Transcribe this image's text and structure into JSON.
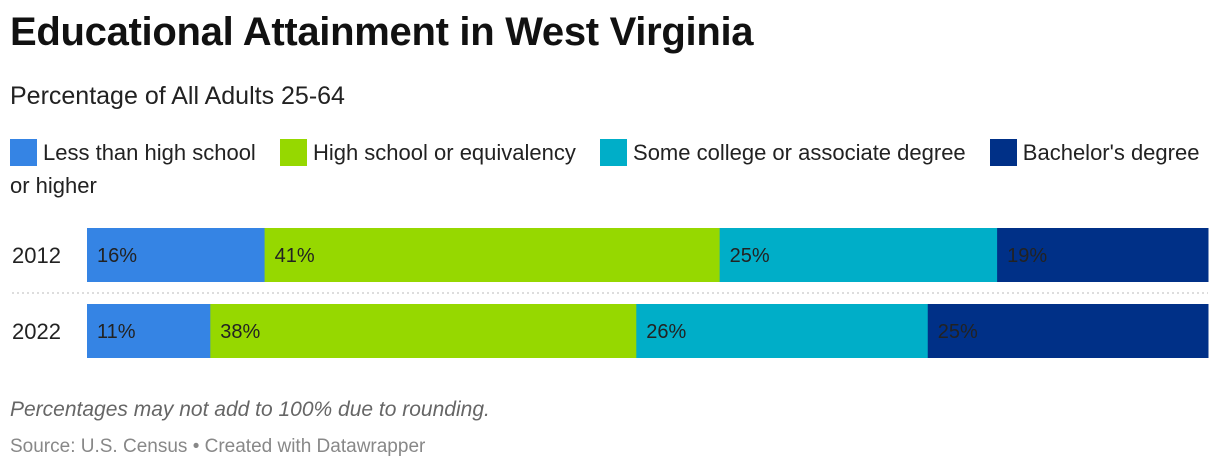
{
  "header": {
    "title": "Educational Attainment in West Virginia",
    "subtitle": "Percentage of All Adults 25-64"
  },
  "colors": {
    "less_than_hs": "#3584e4",
    "high_school": "#96d800",
    "some_college": "#00aec8",
    "bachelors": "#003087"
  },
  "chart_data": {
    "type": "bar",
    "orientation": "horizontal",
    "stacked": true,
    "categories": [
      "2012",
      "2022"
    ],
    "series": [
      {
        "name": "Less than high school",
        "values": [
          16,
          11
        ],
        "labels": [
          "16%",
          "11%"
        ],
        "color": "#3584e4",
        "label_color": "#ffffff"
      },
      {
        "name": "High school or equivalency",
        "values": [
          41,
          38
        ],
        "labels": [
          "41%",
          "38%"
        ],
        "color": "#96d800",
        "label_color": "#333333"
      },
      {
        "name": "Some college or associate degree",
        "values": [
          25,
          26
        ],
        "labels": [
          "25%",
          "26%"
        ],
        "color": "#00aec8",
        "label_color": "#ffffff"
      },
      {
        "name": "Bachelor's degree or higher",
        "values": [
          19,
          25
        ],
        "labels": [
          "19%",
          "25%"
        ],
        "color": "#003087",
        "label_color": "#ffffff"
      }
    ],
    "legend": "top-left"
  },
  "footer": {
    "note": "Percentages may not add to 100% due to rounding.",
    "source": "Source: U.S. Census • Created with Datawrapper"
  }
}
